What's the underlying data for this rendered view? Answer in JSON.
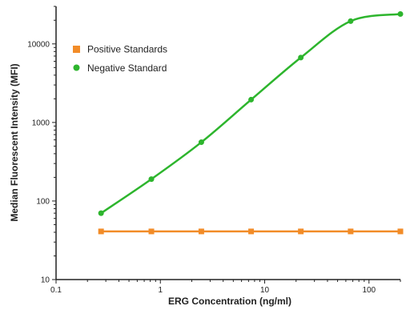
{
  "chart_data": {
    "type": "line",
    "title": "",
    "xlabel": "ERG Concentration (ng/ml)",
    "ylabel": "Median Fluorescent Intensity (MFI)",
    "xscale": "log",
    "yscale": "log",
    "xlim": [
      0.1,
      200
    ],
    "ylim": [
      10,
      30000
    ],
    "x_ticks": [
      0.1,
      1,
      10,
      100
    ],
    "x_tick_labels": [
      "0.1",
      "1",
      "10",
      "100"
    ],
    "y_ticks": [
      10,
      100,
      1000,
      10000
    ],
    "y_tick_labels": [
      "10",
      "100",
      "1000",
      "10000"
    ],
    "grid": false,
    "legend_position": "top-left",
    "series": [
      {
        "name": "Positive Standards",
        "color": "#f28c28",
        "marker": "square",
        "x": [
          0.27,
          0.82,
          2.47,
          7.41,
          22.2,
          66.7,
          200
        ],
        "y": [
          41,
          41,
          41,
          41,
          41,
          41,
          41
        ]
      },
      {
        "name": "Negative Standard",
        "color": "#2db52d",
        "marker": "circle",
        "x": [
          0.27,
          0.82,
          2.47,
          7.41,
          22.2,
          66.7,
          200
        ],
        "y": [
          70,
          190,
          560,
          1950,
          6700,
          19500,
          24000
        ]
      }
    ]
  }
}
